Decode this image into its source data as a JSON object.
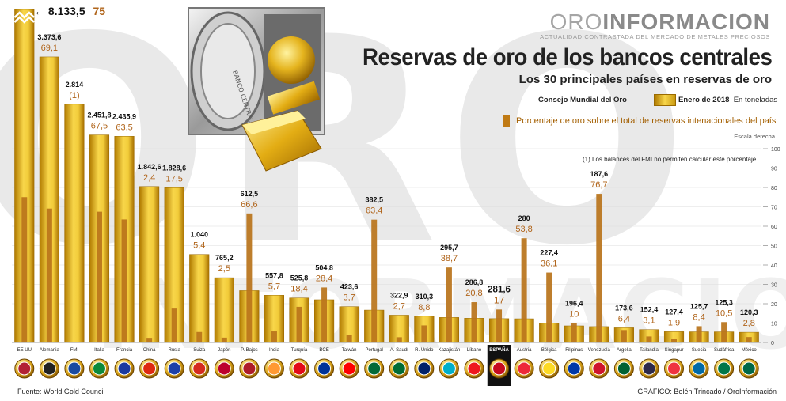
{
  "brand": {
    "name_part1": "ORO",
    "name_part2": "INFORMACION",
    "tagline": "ACTUALIDAD CONTRASTADA DEL MERCADO DE METALES PRECIOSOS",
    "watermark": "ORO",
    "watermark2": "INFORMACION"
  },
  "title": "Reservas de oro de los bancos centrales",
  "subtitle": "Los 30 principales países en reservas de oro",
  "legend": {
    "source_label": "Consejo Mundial del Oro",
    "tonnes_label": "Enero de 2018",
    "tonnes_unit": "En toneladas",
    "pct_label": "Porcentaje de oro sobre el total de reservas intenacionales del país",
    "scale_note": "Escala derecha"
  },
  "note": "(1) Los balances del FMI no permiten calcular este porcentaje.",
  "vault_label": "BANCO CENTRAL",
  "footer": {
    "source": "Fuente: World Gold Council",
    "credit": "GRÁFICO: Belén Trincado / OroInformación"
  },
  "highlight_country": "ESPAÑA",
  "colors": {
    "gold_dark": "#b07a00",
    "gold_light": "#f8d64a",
    "pct_bar": "#b8731a",
    "pct_text": "#b0641a",
    "highlight_bg": "#111111"
  },
  "top_callout": {
    "arrow": "←",
    "value": "8.133,5",
    "pct": "75"
  },
  "chart_data": {
    "type": "bar",
    "title": "Reservas de oro de los bancos centrales",
    "categories": [
      "EE UU",
      "Alemania",
      "FMI",
      "Italia",
      "Francia",
      "China",
      "Rusia",
      "Suiza",
      "Japón",
      "P. Bajos",
      "India",
      "Turquía",
      "BCE",
      "Taiwán",
      "Portugal",
      "A. Saudí",
      "R. Unido",
      "Kazajistán",
      "Líbano",
      "ESPAÑA",
      "Austria",
      "Bélgica",
      "Filipinas",
      "Venezuela",
      "Argelia",
      "Tailandia",
      "Singapur",
      "Suecia",
      "Sudáfrica",
      "México"
    ],
    "series": [
      {
        "name": "Enero de 2018 (toneladas)",
        "axis": "left",
        "values": [
          8133.5,
          3373.6,
          2814,
          2451.8,
          2435.9,
          1842.6,
          1828.6,
          1040,
          765.2,
          612.5,
          557.8,
          525.8,
          504.8,
          423.6,
          382.5,
          322.9,
          310.3,
          295.7,
          286.8,
          281.6,
          280,
          227.4,
          196.4,
          187.6,
          173.6,
          152.4,
          127.4,
          125.7,
          125.3,
          120.3
        ],
        "labels": [
          "",
          "3.373,6",
          "2.814",
          "2.451,8",
          "2.435,9",
          "1.842,6",
          "1.828,6",
          "1.040",
          "765,2",
          "612,5",
          "557,8",
          "525,8",
          "504,8",
          "423,6",
          "382,5",
          "322,9",
          "310,3",
          "295,7",
          "286,8",
          "281,6",
          "280",
          "227,4",
          "196,4",
          "187,6",
          "173,6",
          "152,4",
          "127,4",
          "125,7",
          "125,3",
          "120,3"
        ]
      },
      {
        "name": "Porcentaje de oro sobre el total de reservas",
        "axis": "right",
        "values": [
          75,
          69.1,
          null,
          67.5,
          63.5,
          2.4,
          17.5,
          5.4,
          2.5,
          66.6,
          5.7,
          18.4,
          28.4,
          3.7,
          63.4,
          2.7,
          8.8,
          38.7,
          20.8,
          17,
          53.8,
          36.1,
          10,
          76.7,
          6.4,
          3.1,
          1.9,
          8.4,
          10.5,
          2.8
        ],
        "labels": [
          "",
          "69,1",
          "(1)",
          "67,5",
          "63,5",
          "2,4",
          "17,5",
          "5,4",
          "2,5",
          "66,6",
          "5,7",
          "18,4",
          "28,4",
          "3,7",
          "63,4",
          "2,7",
          "8,8",
          "38,7",
          "20,8",
          "17",
          "53,8",
          "36,1",
          "10",
          "76,7",
          "6,4",
          "3,1",
          "1,9",
          "8,4",
          "10,5",
          "2,8"
        ]
      }
    ],
    "right_axis": {
      "ylim": [
        0,
        100
      ],
      "ticks": [
        "0",
        "10",
        "20",
        "30",
        "40",
        "50",
        "60",
        "70",
        "80",
        "90",
        "100"
      ]
    },
    "left_axis_max_shown": 3700,
    "xlabel": "",
    "ylabel": ""
  }
}
